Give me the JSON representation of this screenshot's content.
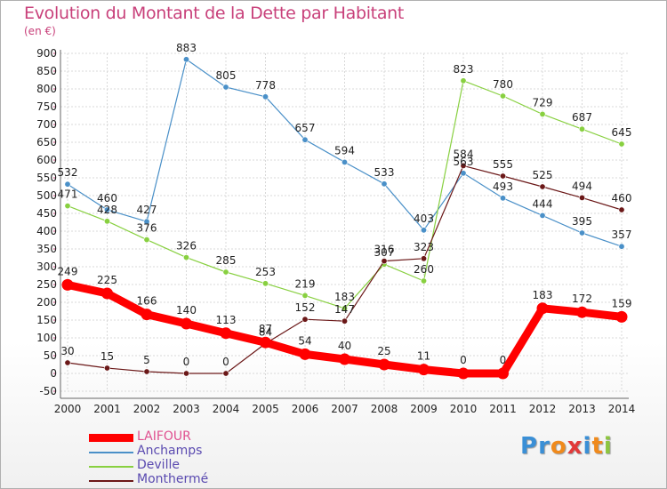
{
  "header": {
    "title": "Evolution du Montant de la Dette par Habitant",
    "subtitle": "(en €)"
  },
  "logo": {
    "text": "Proxiti",
    "letters": [
      "P",
      "r",
      "o",
      "x",
      "i",
      "t",
      "i"
    ],
    "colors": [
      "#3a8fd6",
      "#3a8fd6",
      "#f08a1c",
      "#e23a3a",
      "#3a8fd6",
      "#f08a1c",
      "#8dc63f"
    ]
  },
  "chart_data": {
    "type": "line",
    "title": "Evolution du Montant de la Dette par Habitant",
    "ylabel": "(en €)",
    "xlabel": "",
    "x": [
      "2000",
      "2001",
      "2002",
      "2003",
      "2004",
      "2005",
      "2006",
      "2007",
      "2008",
      "2009",
      "2010",
      "2011",
      "2012",
      "2013",
      "2014"
    ],
    "ylim": [
      -50,
      900
    ],
    "yticks": [
      -50,
      0,
      50,
      100,
      150,
      200,
      250,
      300,
      350,
      400,
      450,
      500,
      550,
      600,
      650,
      700,
      750,
      800,
      850,
      900
    ],
    "grid": true,
    "legend_position": "bottom-left",
    "series": [
      {
        "name": "Anchamps",
        "color": "#4a90c8",
        "values": [
          532,
          460,
          427,
          883,
          805,
          778,
          657,
          594,
          533,
          403,
          563,
          493,
          444,
          395,
          357
        ]
      },
      {
        "name": "Deville",
        "color": "#88d040",
        "values": [
          471,
          428,
          376,
          326,
          285,
          253,
          219,
          183,
          307,
          260,
          823,
          780,
          729,
          687,
          645
        ]
      },
      {
        "name": "Monthermé",
        "color": "#6b1818",
        "values": [
          30,
          15,
          5,
          0,
          0,
          84,
          152,
          147,
          316,
          323,
          584,
          555,
          525,
          494,
          460
        ]
      },
      {
        "name": "LAIFOUR",
        "color": "#ff0000",
        "values": [
          249,
          225,
          166,
          140,
          113,
          87,
          54,
          40,
          25,
          11,
          0,
          0,
          183,
          172,
          159
        ]
      }
    ]
  }
}
